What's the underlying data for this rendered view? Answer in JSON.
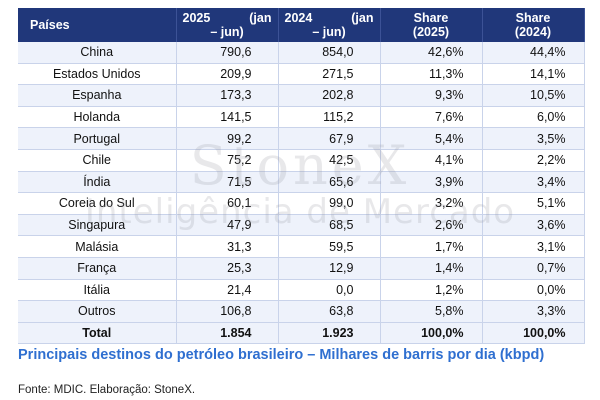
{
  "table": {
    "headers": {
      "country": "Países",
      "y2025_year": "2025",
      "y2025_range_a": "(jan",
      "y2025_range_b": "– jun)",
      "y2024_year": "2024",
      "y2024_range_a": "(jan",
      "y2024_range_b": "– jun)",
      "share2025_a": "Share",
      "share2025_b": "(2025)",
      "share2024_a": "Share",
      "share2024_b": "(2024)"
    },
    "rows": [
      [
        "China",
        "790,6",
        "854,0",
        "42,6%",
        "44,4%"
      ],
      [
        "Estados Unidos",
        "209,9",
        "271,5",
        "11,3%",
        "14,1%"
      ],
      [
        "Espanha",
        "173,3",
        "202,8",
        "9,3%",
        "10,5%"
      ],
      [
        "Holanda",
        "141,5",
        "115,2",
        "7,6%",
        "6,0%"
      ],
      [
        "Portugal",
        "99,2",
        "67,9",
        "5,4%",
        "3,5%"
      ],
      [
        "Chile",
        "75,2",
        "42,5",
        "4,1%",
        "2,2%"
      ],
      [
        "Índia",
        "71,5",
        "65,6",
        "3,9%",
        "3,4%"
      ],
      [
        "Coreia do Sul",
        "60,1",
        "99,0",
        "3,2%",
        "5,1%"
      ],
      [
        "Singapura",
        "47,9",
        "68,5",
        "2,6%",
        "3,6%"
      ],
      [
        "Malásia",
        "31,3",
        "59,5",
        "1,7%",
        "3,1%"
      ],
      [
        "França",
        "25,3",
        "12,9",
        "1,4%",
        "0,7%"
      ],
      [
        "Itália",
        "21,4",
        "0,0",
        "1,2%",
        "0,0%"
      ],
      [
        "Outros",
        "106,8",
        "63,8",
        "5,8%",
        "3,3%"
      ]
    ],
    "total": [
      "Total",
      "1.854",
      "1.923",
      "100,0%",
      "100,0%"
    ]
  },
  "watermark": {
    "logo": "StoneX",
    "tagline": "Inteligência de Mercado"
  },
  "caption": "Principais destinos do petróleo brasileiro – Milhares de barris por dia (kbpd)",
  "source": "Fonte: MDIC. Elaboração: StoneX.",
  "colors": {
    "header_bg": "#20377a",
    "header_text": "#ffffff",
    "row_stripe": "#eef2fb",
    "caption": "#2f6fd0"
  }
}
